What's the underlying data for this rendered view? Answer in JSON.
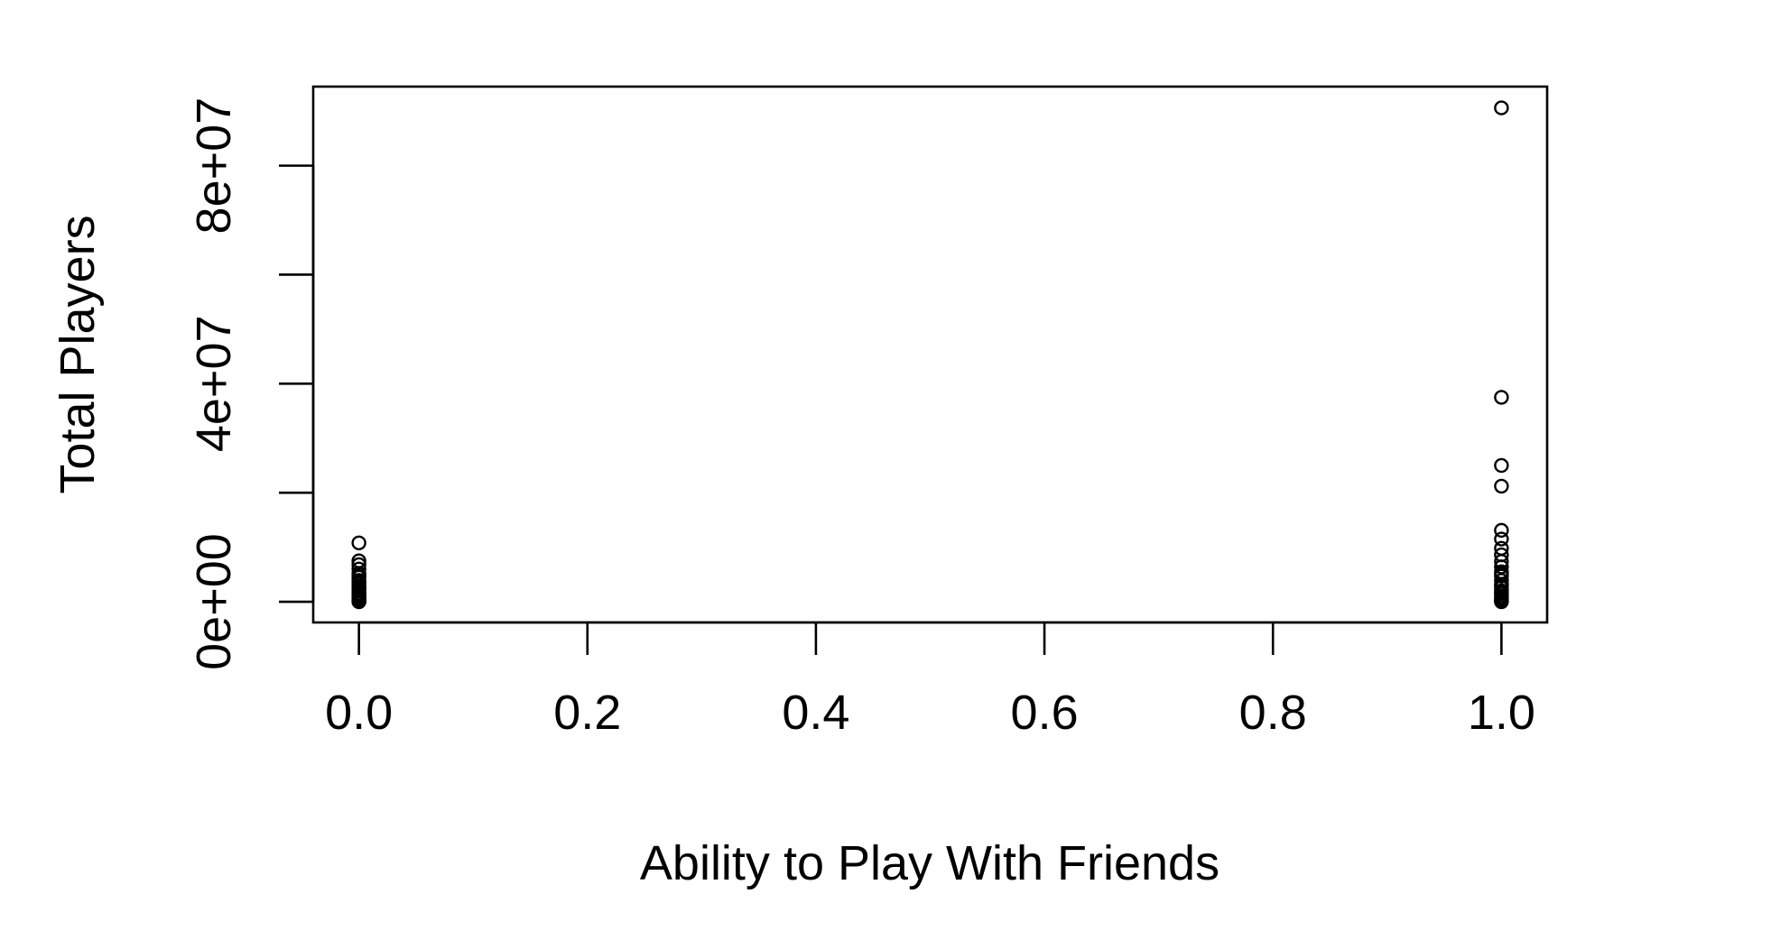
{
  "chart_data": {
    "type": "scatter",
    "title": "",
    "xlabel": "Ability to Play With Friends",
    "ylabel": "Total Players",
    "xlim": [
      -0.04,
      1.04
    ],
    "ylim": [
      -3800000,
      94500000
    ],
    "x_ticks": [
      0.0,
      0.2,
      0.4,
      0.6,
      0.8,
      1.0
    ],
    "x_tick_labels": [
      "0.0",
      "0.2",
      "0.4",
      "0.6",
      "0.8",
      "1.0"
    ],
    "y_ticks": [
      0,
      20000000,
      40000000,
      60000000,
      80000000
    ],
    "y_tick_labels": [
      "0e+00",
      "",
      "4e+07",
      "",
      "8e+07"
    ],
    "grid": false,
    "legend": "none",
    "series": [
      {
        "x": [
          0,
          0,
          0,
          0,
          0,
          0,
          0,
          0,
          0,
          0,
          0,
          0,
          0,
          0,
          0,
          0,
          0,
          0,
          0,
          0,
          0,
          0,
          0,
          0,
          1,
          1,
          1,
          1,
          1,
          1,
          1,
          1,
          1,
          1,
          1,
          1,
          1,
          1,
          1,
          1,
          1,
          1,
          1,
          1,
          1,
          1,
          1,
          1,
          1,
          1
        ],
        "y": [
          10800000,
          7500000,
          6800000,
          6000000,
          5200000,
          4500000,
          3900000,
          3300000,
          2800000,
          2300000,
          1900000,
          1500000,
          1100000,
          800000,
          500000,
          300000,
          150000,
          50000,
          0,
          2600000,
          3600000,
          4800000,
          1300000,
          600000,
          90600000,
          37500000,
          25000000,
          21200000,
          13100000,
          11500000,
          9800000,
          8600000,
          7400000,
          6400000,
          5500000,
          4700000,
          3900000,
          3200000,
          2600000,
          2000000,
          1500000,
          1100000,
          700000,
          400000,
          200000,
          100000,
          0,
          3000000,
          5100000,
          1700000
        ]
      }
    ]
  }
}
